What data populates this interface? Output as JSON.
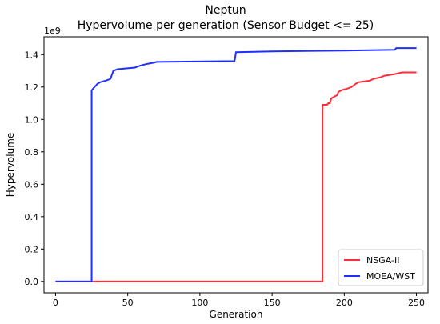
{
  "chart_data": {
    "type": "line",
    "title": "Neptun",
    "subtitle": "Hypervolume per generation (Sensor Budget <= 25)",
    "xlabel": "Generation",
    "ylabel": "Hypervolume",
    "y_offset_label": "1e9",
    "xlim": [
      -8,
      258
    ],
    "ylim": [
      -0.07,
      1.51
    ],
    "x_ticks": [
      0,
      50,
      100,
      150,
      200,
      250
    ],
    "y_ticks": [
      0.0,
      0.2,
      0.4,
      0.6,
      0.8,
      1.0,
      1.2,
      1.4
    ],
    "y_tick_labels": [
      "0.0",
      "0.2",
      "0.4",
      "0.6",
      "0.8",
      "1.0",
      "1.2",
      "1.4"
    ],
    "grid": false,
    "legend_position": "lower-right",
    "series": [
      {
        "name": "NSGA-II",
        "color": "#ff2d3a",
        "points": [
          [
            0,
            0.0
          ],
          [
            185,
            0.0
          ],
          [
            185,
            1.09
          ],
          [
            188,
            1.09
          ],
          [
            189,
            1.1
          ],
          [
            190,
            1.1
          ],
          [
            191,
            1.13
          ],
          [
            193,
            1.14
          ],
          [
            195,
            1.15
          ],
          [
            196,
            1.17
          ],
          [
            198,
            1.18
          ],
          [
            202,
            1.19
          ],
          [
            205,
            1.2
          ],
          [
            208,
            1.22
          ],
          [
            210,
            1.23
          ],
          [
            218,
            1.24
          ],
          [
            220,
            1.25
          ],
          [
            225,
            1.26
          ],
          [
            228,
            1.27
          ],
          [
            235,
            1.28
          ],
          [
            240,
            1.29
          ],
          [
            250,
            1.29
          ]
        ]
      },
      {
        "name": "MOEA/WST",
        "color": "#1f2fff",
        "points": [
          [
            0,
            0.0
          ],
          [
            25,
            0.0
          ],
          [
            25,
            1.18
          ],
          [
            27,
            1.2
          ],
          [
            29,
            1.22
          ],
          [
            31,
            1.23
          ],
          [
            35,
            1.24
          ],
          [
            38,
            1.25
          ],
          [
            40,
            1.3
          ],
          [
            43,
            1.31
          ],
          [
            55,
            1.32
          ],
          [
            58,
            1.33
          ],
          [
            62,
            1.34
          ],
          [
            65,
            1.345
          ],
          [
            68,
            1.35
          ],
          [
            70,
            1.355
          ],
          [
            124,
            1.36
          ],
          [
            125,
            1.415
          ],
          [
            150,
            1.42
          ],
          [
            200,
            1.425
          ],
          [
            235,
            1.43
          ],
          [
            236,
            1.44
          ],
          [
            250,
            1.44
          ]
        ]
      }
    ]
  }
}
